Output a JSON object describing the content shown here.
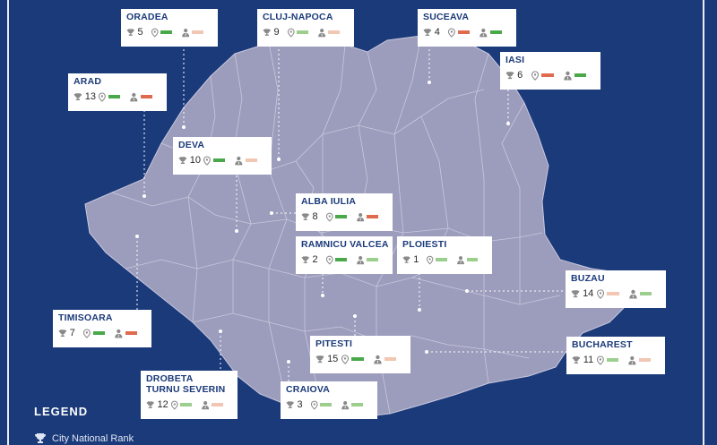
{
  "legend": {
    "title": "LEGEND",
    "items": [
      {
        "icon": "trophy-icon",
        "label": "City National Rank"
      }
    ]
  },
  "colors": {
    "background": "#1b3a7a",
    "map_fill": "#9c9cbc",
    "good": "#49a84a",
    "moderate": "#9ccf8e",
    "weak": "#e06a4e",
    "low": "#f1c6b2"
  },
  "cities": [
    {
      "id": "oradea",
      "name": "ORADEA",
      "rank": "5",
      "location_score": "green",
      "person_score": "pink"
    },
    {
      "id": "cluj",
      "name": "CLUJ-NAPOCA",
      "rank": "9",
      "location_score": "light-green",
      "person_score": "pink"
    },
    {
      "id": "suceava",
      "name": "SUCEAVA",
      "rank": "4",
      "location_score": "orange",
      "person_score": "green"
    },
    {
      "id": "iasi",
      "name": "IASI",
      "rank": "6",
      "location_score": "orange",
      "person_score": "green"
    },
    {
      "id": "arad",
      "name": "ARAD",
      "rank": "13",
      "location_score": "green",
      "person_score": "orange"
    },
    {
      "id": "deva",
      "name": "DEVA",
      "rank": "10",
      "location_score": "green",
      "person_score": "pink"
    },
    {
      "id": "alba",
      "name": "ALBA IULIA",
      "rank": "8",
      "location_score": "green",
      "person_score": "orange"
    },
    {
      "id": "ramnicu",
      "name": "RAMNICU VALCEA",
      "rank": "2",
      "location_score": "green",
      "person_score": "light-green"
    },
    {
      "id": "ploiesti",
      "name": "PLOIESTI",
      "rank": "1",
      "location_score": "light-green",
      "person_score": "light-green"
    },
    {
      "id": "buzau",
      "name": "BUZAU",
      "rank": "14",
      "location_score": "pink",
      "person_score": "light-green"
    },
    {
      "id": "timisoara",
      "name": "TIMISOARA",
      "rank": "7",
      "location_score": "green",
      "person_score": "orange"
    },
    {
      "id": "pitesti",
      "name": "PITESTI",
      "rank": "15",
      "location_score": "green",
      "person_score": "pink"
    },
    {
      "id": "bucharest",
      "name": "BUCHAREST",
      "rank": "11",
      "location_score": "light-green",
      "person_score": "pink"
    },
    {
      "id": "drobeta",
      "name": "DROBETA",
      "name2": "TURNU SEVERIN",
      "rank": "12",
      "location_score": "light-green",
      "person_score": "pink"
    },
    {
      "id": "craiova",
      "name": "CRAIOVA",
      "rank": "3",
      "location_score": "light-green",
      "person_score": "light-green"
    }
  ]
}
